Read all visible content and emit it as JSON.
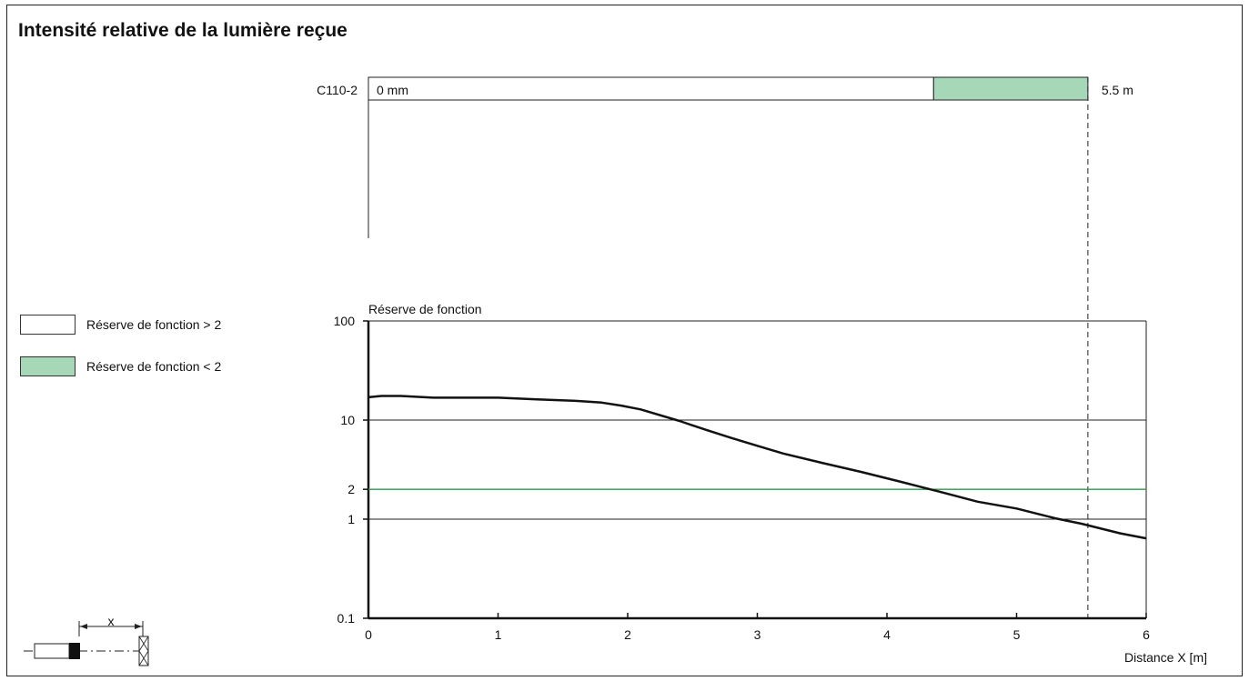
{
  "title": "Intensité relative de la lumière reçue",
  "range_bar": {
    "sensor": "C110-2",
    "start_label": "0 mm",
    "end_label": "5.5 m",
    "green_start": 4.36,
    "end": 5.55,
    "white_color": "#ffffff",
    "green_color": "#a6d8b8"
  },
  "legend": [
    {
      "label": "Réserve de fonction > 2",
      "color": "#ffffff"
    },
    {
      "label": "Réserve de fonction < 2",
      "color": "#a6d8b8"
    }
  ],
  "diagram": {
    "distance_label": "x"
  },
  "chart_data": {
    "type": "line",
    "ylabel": "Réserve de fonction",
    "xlabel": "Distance X [m]",
    "xlim": [
      0,
      6
    ],
    "ylim": [
      0.1,
      100
    ],
    "y_scale": "log",
    "x_ticks": [
      "0",
      "1",
      "2",
      "3",
      "4",
      "5",
      "6"
    ],
    "y_ticks": [
      {
        "value": 100,
        "label": "100"
      },
      {
        "value": 10,
        "label": "10"
      },
      {
        "value": 2,
        "label": "2"
      },
      {
        "value": 1,
        "label": "1"
      },
      {
        "value": 0.1,
        "label": "0.1"
      }
    ],
    "threshold": {
      "value": 2,
      "color": "#2a9a4a"
    },
    "cutoff_x": 5.55,
    "series": [
      {
        "color": "#111111",
        "x": [
          0,
          0.1,
          0.25,
          0.5,
          1.0,
          1.3,
          1.6,
          1.8,
          1.95,
          2.1,
          2.4,
          2.6,
          2.8,
          3.0,
          3.2,
          3.5,
          3.8,
          4.1,
          4.4,
          4.7,
          5.0,
          5.3,
          5.5,
          5.8,
          6.0
        ],
        "y": [
          17,
          17.5,
          17.5,
          16.8,
          16.8,
          16.2,
          15.6,
          15,
          14,
          12.8,
          9.8,
          8,
          6.6,
          5.5,
          4.6,
          3.7,
          3.0,
          2.4,
          1.9,
          1.5,
          1.28,
          1.02,
          0.9,
          0.72,
          0.64
        ]
      }
    ]
  }
}
